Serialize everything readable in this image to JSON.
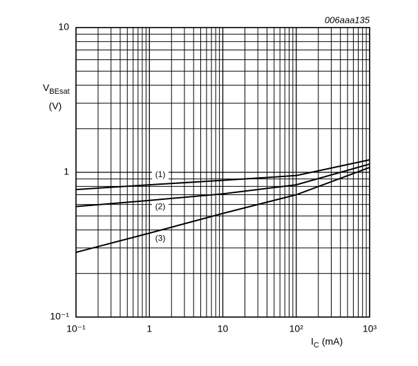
{
  "chart_data": {
    "type": "line",
    "annotation": "006aaa135",
    "y_label": {
      "main": "V",
      "sub": "BEsat",
      "unit": "(V)"
    },
    "x_label": {
      "main": "I",
      "sub": "C",
      "unit": "(mA)"
    },
    "x": [
      0.1,
      1,
      10,
      100,
      1000
    ],
    "series": [
      {
        "name": "(1)",
        "color": "#000000",
        "values": [
          0.76,
          0.82,
          0.88,
          0.95,
          1.22
        ]
      },
      {
        "name": "(2)",
        "color": "#000000",
        "values": [
          0.58,
          0.64,
          0.71,
          0.82,
          1.14
        ]
      },
      {
        "name": "(3)",
        "color": "#000000",
        "values": [
          0.28,
          0.38,
          0.52,
          0.7,
          1.08
        ]
      }
    ],
    "xlim": [
      0.1,
      1000
    ],
    "ylim": [
      0.1,
      10
    ],
    "xticks": [
      {
        "value": 0.1,
        "label": "10⁻¹"
      },
      1,
      10,
      {
        "value": 100,
        "label": "10²"
      },
      {
        "value": 1000,
        "label": "10³"
      }
    ],
    "yticks": [
      {
        "value": 0.1,
        "label": "10⁻¹"
      },
      1,
      10
    ],
    "xscale": "log",
    "yscale": "log",
    "grid": true
  }
}
